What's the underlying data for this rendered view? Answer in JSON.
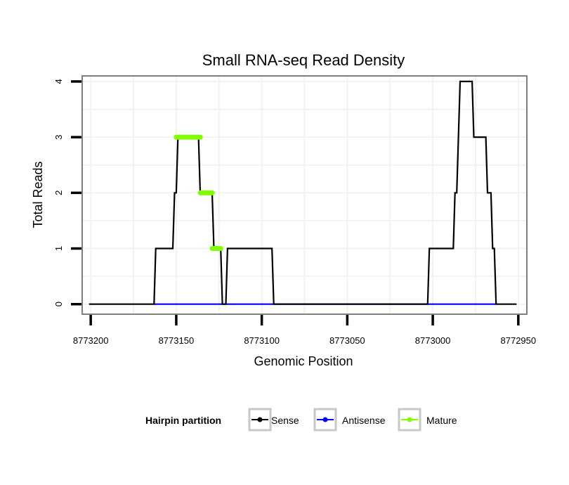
{
  "chart_data": {
    "type": "line",
    "title": "Small RNA-seq Read Density",
    "xlabel": "Genomic Position",
    "ylabel": "Total Reads",
    "xlim": [
      8773205,
      8772945
    ],
    "ylim": [
      -0.18,
      4.1
    ],
    "x_reversed": true,
    "x_ticks": [
      8773200,
      8773150,
      8773100,
      8773050,
      8773000,
      8772950
    ],
    "x_tick_labels": [
      "8773200",
      "8773150",
      "8773100",
      "8773050",
      "8773000",
      "8772950"
    ],
    "y_ticks": [
      0,
      1,
      2,
      3,
      4
    ],
    "y_tick_labels": [
      "0",
      "1",
      "2",
      "3",
      "4"
    ],
    "grid": true,
    "legend_title": "Hairpin partition",
    "legend_position": "bottom",
    "series": [
      {
        "name": "Sense",
        "color": "#000000",
        "points": [
          [
            8773201,
            0
          ],
          [
            8773163,
            0
          ],
          [
            8773162,
            1
          ],
          [
            8773152,
            1
          ],
          [
            8773151,
            2
          ],
          [
            8773150,
            2
          ],
          [
            8773149,
            3
          ],
          [
            8773137,
            3
          ],
          [
            8773136,
            2
          ],
          [
            8773129,
            2
          ],
          [
            8773128,
            1
          ],
          [
            8773124,
            1
          ],
          [
            8773123,
            0
          ],
          [
            8773121,
            0
          ],
          [
            8773120,
            1
          ],
          [
            8773094,
            1
          ],
          [
            8773093,
            0
          ],
          [
            8773003,
            0
          ],
          [
            8773002,
            1
          ],
          [
            8772988,
            1
          ],
          [
            8772987,
            2
          ],
          [
            8772986,
            2
          ],
          [
            8772984,
            4
          ],
          [
            8772977,
            4
          ],
          [
            8772976,
            3
          ],
          [
            8772969,
            3
          ],
          [
            8772968,
            2
          ],
          [
            8772966,
            2
          ],
          [
            8772965,
            1
          ],
          [
            8772964,
            1
          ],
          [
            8772963,
            0
          ],
          [
            8772951,
            0
          ]
        ]
      },
      {
        "name": "Antisense",
        "color": "#0000ff",
        "points": [
          [
            8773163,
            0
          ],
          [
            8773121,
            0
          ],
          [
            8773003,
            0
          ],
          [
            8772963,
            0
          ]
        ]
      },
      {
        "name": "Mature",
        "color": "#7fff00",
        "segments": [
          {
            "x_start": 8773150,
            "x_end": 8773136,
            "y": 3
          },
          {
            "x_start": 8773136,
            "x_end": 8773129,
            "y": 2
          },
          {
            "x_start": 8773129,
            "x_end": 8773124,
            "y": 1
          }
        ]
      }
    ]
  }
}
